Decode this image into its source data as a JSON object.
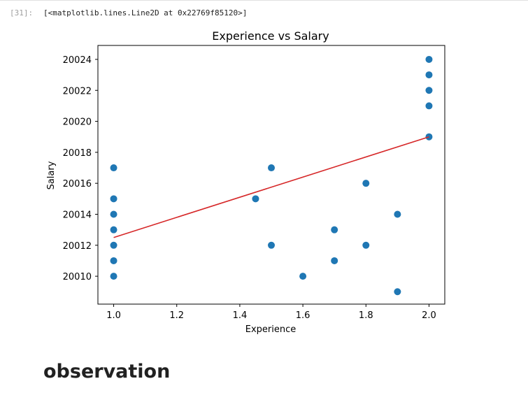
{
  "cell": {
    "prompt": "[31]:",
    "output_text": "[<matplotlib.lines.Line2D at 0x22769f85120>]"
  },
  "markdown": {
    "heading": "observation"
  },
  "chart_data": {
    "type": "scatter",
    "title": "Experience vs Salary",
    "xlabel": "Experience",
    "ylabel": "Salary",
    "xlim": [
      0.95,
      2.05
    ],
    "ylim": [
      20008.2,
      20024.9
    ],
    "xticks": [
      1.0,
      1.2,
      1.4,
      1.6,
      1.8,
      2.0
    ],
    "xtick_labels": [
      "1.0",
      "1.2",
      "1.4",
      "1.6",
      "1.8",
      "2.0"
    ],
    "yticks": [
      20010,
      20012,
      20014,
      20016,
      20018,
      20020,
      20022,
      20024
    ],
    "ytick_labels": [
      "20010",
      "20012",
      "20014",
      "20016",
      "20018",
      "20020",
      "20022",
      "20024"
    ],
    "grid": false,
    "point_color": "#1f77b4",
    "line_color": "#d62728",
    "points": [
      {
        "x": 1.0,
        "y": 20017
      },
      {
        "x": 1.0,
        "y": 20015
      },
      {
        "x": 1.0,
        "y": 20014
      },
      {
        "x": 1.0,
        "y": 20013
      },
      {
        "x": 1.0,
        "y": 20012
      },
      {
        "x": 1.0,
        "y": 20011
      },
      {
        "x": 1.0,
        "y": 20010
      },
      {
        "x": 1.45,
        "y": 20015
      },
      {
        "x": 1.5,
        "y": 20017
      },
      {
        "x": 1.5,
        "y": 20012
      },
      {
        "x": 1.6,
        "y": 20010
      },
      {
        "x": 1.7,
        "y": 20013
      },
      {
        "x": 1.7,
        "y": 20011
      },
      {
        "x": 1.8,
        "y": 20016
      },
      {
        "x": 1.8,
        "y": 20012
      },
      {
        "x": 1.9,
        "y": 20014
      },
      {
        "x": 1.9,
        "y": 20009
      },
      {
        "x": 2.0,
        "y": 20024
      },
      {
        "x": 2.0,
        "y": 20023
      },
      {
        "x": 2.0,
        "y": 20022
      },
      {
        "x": 2.0,
        "y": 20021
      },
      {
        "x": 2.0,
        "y": 20019
      }
    ],
    "fit_line": [
      {
        "x": 1.0,
        "y": 20012.5
      },
      {
        "x": 2.0,
        "y": 20019.0
      }
    ]
  }
}
